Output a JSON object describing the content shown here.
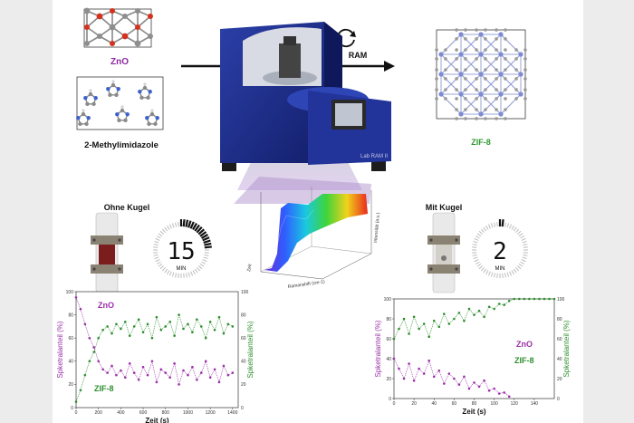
{
  "reactants": {
    "zno": "ZnO",
    "methylimidazole": "2-Methylimidazole"
  },
  "process": {
    "label": "RAM",
    "device_label": "Lab RAM II"
  },
  "product": {
    "label": "ZIF-8"
  },
  "left_panel": {
    "title": "Ohne Kugel",
    "timer_value": "15",
    "timer_unit": "MIN"
  },
  "right_panel": {
    "title": "Mit Kugel",
    "timer_value": "2",
    "timer_unit": "MIN"
  },
  "spectrum_3d": {
    "x_label": "Ramanshift (cm-1)",
    "y_label": "Zeit",
    "z_label": "Intensität (a.u.)"
  },
  "chart_data": [
    {
      "type": "scatter",
      "name": "left",
      "xlabel": "Zeit (s)",
      "ylabel_left": "Spketralanteil (%)",
      "ylabel_right": "Spketralanteil (%)",
      "xlim": [
        0,
        1450
      ],
      "ylim": [
        0,
        100
      ],
      "x_ticks": [
        0,
        200,
        400,
        600,
        800,
        1000,
        1200,
        1400
      ],
      "y_ticks": [
        0,
        20,
        40,
        60,
        80,
        100
      ],
      "series": [
        {
          "name": "ZnO",
          "color": "#9b2fa8",
          "x": [
            0,
            40,
            80,
            120,
            160,
            200,
            240,
            280,
            320,
            360,
            400,
            440,
            480,
            520,
            560,
            600,
            640,
            680,
            720,
            760,
            800,
            840,
            880,
            920,
            960,
            1000,
            1040,
            1080,
            1120,
            1160,
            1200,
            1240,
            1280,
            1320,
            1360,
            1400
          ],
          "y": [
            95,
            85,
            72,
            60,
            52,
            40,
            33,
            30,
            36,
            28,
            32,
            26,
            38,
            30,
            24,
            35,
            28,
            40,
            22,
            33,
            30,
            26,
            38,
            20,
            32,
            28,
            35,
            24,
            30,
            40,
            26,
            33,
            22,
            36,
            28,
            30
          ]
        },
        {
          "name": "ZIF-8",
          "color": "#2d8f2d",
          "x": [
            0,
            40,
            80,
            120,
            160,
            200,
            240,
            280,
            320,
            360,
            400,
            440,
            480,
            520,
            560,
            600,
            640,
            680,
            720,
            760,
            800,
            840,
            880,
            920,
            960,
            1000,
            1040,
            1080,
            1120,
            1160,
            1200,
            1240,
            1280,
            1320,
            1360,
            1400
          ],
          "y": [
            5,
            15,
            28,
            40,
            48,
            60,
            67,
            70,
            64,
            72,
            68,
            74,
            62,
            70,
            76,
            65,
            72,
            60,
            78,
            67,
            70,
            74,
            62,
            80,
            68,
            72,
            65,
            76,
            70,
            60,
            74,
            67,
            78,
            64,
            72,
            70
          ]
        }
      ]
    },
    {
      "type": "scatter",
      "name": "right",
      "xlabel": "Zeit (s)",
      "ylabel_left": "Spketralanteil (%)",
      "ylabel_right": "Spketralanteil (%)",
      "xlim": [
        0,
        160
      ],
      "ylim": [
        0,
        100
      ],
      "x_ticks": [
        0,
        20,
        40,
        60,
        80,
        100,
        120,
        140
      ],
      "y_ticks": [
        0,
        20,
        40,
        60,
        80,
        100
      ],
      "series": [
        {
          "name": "ZnO",
          "color": "#9b2fa8",
          "x": [
            0,
            5,
            10,
            15,
            20,
            25,
            30,
            35,
            40,
            45,
            50,
            55,
            60,
            65,
            70,
            75,
            80,
            85,
            90,
            95,
            100,
            105,
            110,
            115
          ],
          "y": [
            40,
            30,
            20,
            35,
            18,
            30,
            25,
            38,
            22,
            28,
            15,
            25,
            20,
            14,
            22,
            10,
            16,
            12,
            18,
            8,
            10,
            5,
            6,
            2
          ]
        },
        {
          "name": "ZIF-8",
          "color": "#2d8f2d",
          "x": [
            0,
            5,
            10,
            15,
            20,
            25,
            30,
            35,
            40,
            45,
            50,
            55,
            60,
            65,
            70,
            75,
            80,
            85,
            90,
            95,
            100,
            105,
            110,
            115,
            120,
            125,
            130,
            135,
            140,
            145,
            150,
            155,
            160
          ],
          "y": [
            60,
            70,
            80,
            65,
            82,
            70,
            75,
            62,
            78,
            72,
            85,
            75,
            80,
            86,
            78,
            90,
            84,
            88,
            82,
            92,
            90,
            95,
            94,
            98,
            100,
            100,
            100,
            100,
            100,
            100,
            100,
            100,
            100
          ]
        }
      ]
    }
  ]
}
